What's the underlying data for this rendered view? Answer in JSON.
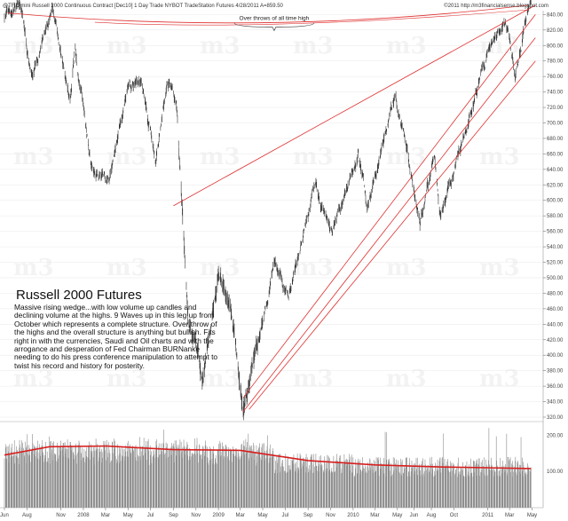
{
  "header": {
    "text": "@TF.D  mini Russell 2000 Continuous Contract [Dec10]  1 Day  Trade  NYBOT  TradeStation  Futures  4/28/2011  A=859.50",
    "watermark": "©2011 http://m3financialsense.blogspot.com"
  },
  "title": "Russell 2000 Futures",
  "description": "Massive rising wedge...with low volume up candles and declining volume at the highs. 9 Waves up in this leg up from October which represents a complete structure. Over throw of the highs and the overall structure is anything but bullish. Fits right in with the currencies, Saudi and Oil charts and with the arrogance and desperation of Fed Chairman BURNanke needing to do his press conference manipulation to attempt to twist his record and history for posterity.",
  "annotation": "Over throws of all time high",
  "colors": {
    "price": "#333333",
    "trendline": "#e03030",
    "volume": "#8a8a8a",
    "volume_ma": "#d81e1e"
  },
  "chart_data": {
    "type": "bar",
    "ylim": [
      320,
      845
    ],
    "y_ticks": [
      320,
      340,
      360,
      380,
      400,
      420,
      440,
      460,
      480,
      500,
      520,
      540,
      560,
      580,
      600,
      620,
      640,
      660,
      680,
      700,
      720,
      740,
      760,
      780,
      800,
      820,
      840
    ],
    "x_ticks": [
      "Jun",
      "Aug",
      "Nov",
      "2008",
      "Mar",
      "May",
      "Jul",
      "Sep",
      "Nov",
      "2009",
      "Mar",
      "May",
      "Jul",
      "Sep",
      "Nov",
      "2010",
      "Mar",
      "May",
      "Jun",
      "Aug",
      "Oct",
      "2011",
      "Mar",
      "May"
    ],
    "volume_ticks": [
      100,
      200
    ],
    "price_path": [
      {
        "d": "2007-06-01",
        "v": 840
      },
      {
        "d": "2007-07-15",
        "v": 850
      },
      {
        "d": "2007-08-16",
        "v": 760
      },
      {
        "d": "2007-10-09",
        "v": 845
      },
      {
        "d": "2007-11-26",
        "v": 730
      },
      {
        "d": "2007-12-10",
        "v": 800
      },
      {
        "d": "2008-01-22",
        "v": 645
      },
      {
        "d": "2008-03-10",
        "v": 630
      },
      {
        "d": "2008-05-01",
        "v": 740
      },
      {
        "d": "2008-06-05",
        "v": 755
      },
      {
        "d": "2008-07-15",
        "v": 650
      },
      {
        "d": "2008-08-15",
        "v": 760
      },
      {
        "d": "2008-09-10",
        "v": 720
      },
      {
        "d": "2008-10-10",
        "v": 450
      },
      {
        "d": "2008-11-20",
        "v": 370
      },
      {
        "d": "2008-12-31",
        "v": 500
      },
      {
        "d": "2009-02-01",
        "v": 480
      },
      {
        "d": "2009-03-09",
        "v": 325
      },
      {
        "d": "2009-06-01",
        "v": 520
      },
      {
        "d": "2009-07-10",
        "v": 480
      },
      {
        "d": "2009-09-20",
        "v": 620
      },
      {
        "d": "2009-11-01",
        "v": 560
      },
      {
        "d": "2010-01-15",
        "v": 660
      },
      {
        "d": "2010-02-08",
        "v": 590
      },
      {
        "d": "2010-04-26",
        "v": 740
      },
      {
        "d": "2010-07-01",
        "v": 570
      },
      {
        "d": "2010-08-10",
        "v": 660
      },
      {
        "d": "2010-08-26",
        "v": 580
      },
      {
        "d": "2010-12-31",
        "v": 790
      },
      {
        "d": "2011-02-18",
        "v": 830
      },
      {
        "d": "2011-03-16",
        "v": 760
      },
      {
        "d": "2011-04-28",
        "v": 859.5
      }
    ],
    "trendlines": [
      {
        "from": {
          "d": "2008-09-01",
          "v": 593
        },
        "to": {
          "d": "2011-05-10",
          "v": 852
        }
      },
      {
        "from": {
          "d": "2009-03-09",
          "v": 345
        },
        "to": {
          "d": "2011-05-10",
          "v": 840
        }
      },
      {
        "from": {
          "d": "2009-03-09",
          "v": 327
        },
        "to": {
          "d": "2011-05-10",
          "v": 810
        }
      },
      {
        "from": {
          "d": "2009-03-25",
          "v": 330
        },
        "to": {
          "d": "2011-05-10",
          "v": 780
        }
      }
    ],
    "volume_ma_path": [
      {
        "d": "2007-06-01",
        "v": 145
      },
      {
        "d": "2007-10-01",
        "v": 168
      },
      {
        "d": "2008-03-01",
        "v": 170
      },
      {
        "d": "2008-09-01",
        "v": 160
      },
      {
        "d": "2009-03-01",
        "v": 158
      },
      {
        "d": "2009-09-01",
        "v": 130
      },
      {
        "d": "2010-03-01",
        "v": 118
      },
      {
        "d": "2010-09-01",
        "v": 112
      },
      {
        "d": "2011-01-01",
        "v": 110
      },
      {
        "d": "2011-04-28",
        "v": 108
      }
    ]
  }
}
